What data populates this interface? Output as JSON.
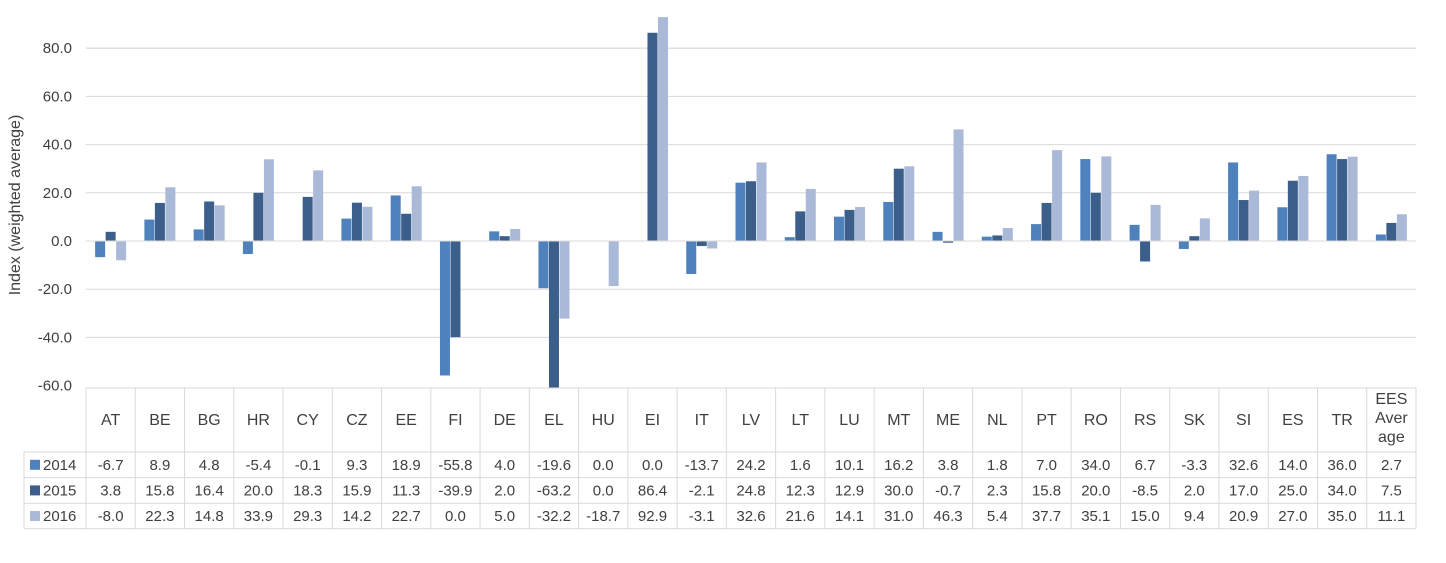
{
  "chart_data": {
    "type": "bar",
    "title": "",
    "xlabel": "",
    "ylabel": "Index (weighted average)",
    "ylim": [
      -60,
      90
    ],
    "yticks": [
      -60,
      -40,
      -20,
      0,
      20,
      40,
      60,
      80
    ],
    "ytick_labels": [
      "-60.0",
      "-40.0",
      "-20.0",
      "0.0",
      "20.0",
      "40.0",
      "60.0",
      "80.0"
    ],
    "grid": true,
    "legend": "data-table-left",
    "categories": [
      "AT",
      "BE",
      "BG",
      "HR",
      "CY",
      "CZ",
      "EE",
      "FI",
      "DE",
      "EL",
      "HU",
      "EI",
      "IT",
      "LV",
      "LT",
      "LU",
      "MT",
      "ME",
      "NL",
      "PT",
      "RO",
      "RS",
      "SK",
      "SI",
      "ES",
      "TR",
      "EES Average"
    ],
    "category_labels": [
      "AT",
      "BE",
      "BG",
      "HR",
      "CY",
      "CZ",
      "EE",
      "FI",
      "DE",
      "EL",
      "HU",
      "EI",
      "IT",
      "LV",
      "LT",
      "LU",
      "MT",
      "ME",
      "NL",
      "PT",
      "RO",
      "RS",
      "SK",
      "SI",
      "ES",
      "TR",
      [
        "EES",
        "Aver",
        "age"
      ]
    ],
    "series": [
      {
        "name": "2014",
        "color": "#4f81bd",
        "values": [
          -6.7,
          8.9,
          4.8,
          -5.4,
          -0.1,
          9.3,
          18.9,
          -55.8,
          4.0,
          -19.6,
          0.0,
          0.0,
          -13.7,
          24.2,
          1.6,
          10.1,
          16.2,
          3.8,
          1.8,
          7.0,
          34.0,
          6.7,
          -3.3,
          32.6,
          14.0,
          36.0,
          2.7
        ],
        "labels": [
          "-6.7",
          "8.9",
          "4.8",
          "-5.4",
          "-0.1",
          "9.3",
          "18.9",
          "-55.8",
          "4.0",
          "-19.6",
          "0.0",
          "0.0",
          "-13.7",
          "24.2",
          "1.6",
          "10.1",
          "16.2",
          "3.8",
          "1.8",
          "7.0",
          "34.0",
          "6.7",
          "-3.3",
          "32.6",
          "14.0",
          "36.0",
          "2.7"
        ]
      },
      {
        "name": "2015",
        "color": "#3b5f8a",
        "values": [
          3.8,
          15.8,
          16.4,
          20.0,
          18.3,
          15.9,
          11.3,
          -39.9,
          2.0,
          -63.2,
          0.0,
          86.4,
          -2.1,
          24.8,
          12.3,
          12.9,
          30.0,
          -0.7,
          2.3,
          15.8,
          20.0,
          -8.5,
          2.0,
          17.0,
          25.0,
          34.0,
          7.5
        ],
        "labels": [
          "3.8",
          "15.8",
          "16.4",
          "20.0",
          "18.3",
          "15.9",
          "11.3",
          "-39.9",
          "2.0",
          "-63.2",
          "0.0",
          "86.4",
          "-2.1",
          "24.8",
          "12.3",
          "12.9",
          "30.0",
          "-0.7",
          "2.3",
          "15.8",
          "20.0",
          "-8.5",
          "2.0",
          "17.0",
          "25.0",
          "34.0",
          "7.5"
        ]
      },
      {
        "name": "2016",
        "color": "#aab9d7",
        "values": [
          -8.0,
          22.3,
          14.8,
          33.9,
          29.3,
          14.2,
          22.7,
          0.0,
          5.0,
          -32.2,
          -18.7,
          92.9,
          -3.1,
          32.6,
          21.6,
          14.1,
          31.0,
          46.3,
          5.4,
          37.7,
          35.1,
          15.0,
          9.4,
          20.9,
          27.0,
          35.0,
          11.1
        ],
        "labels": [
          "-8.0",
          "22.3",
          "14.8",
          "33.9",
          "29.3",
          "14.2",
          "22.7",
          "0.0",
          "5.0",
          "-32.2",
          "-18.7",
          "92.9",
          "-3.1",
          "32.6",
          "21.6",
          "14.1",
          "31.0",
          "46.3",
          "5.4",
          "37.7",
          "35.1",
          "15.0",
          "9.4",
          "20.9",
          "27.0",
          "35.0",
          "11.1"
        ]
      }
    ]
  }
}
